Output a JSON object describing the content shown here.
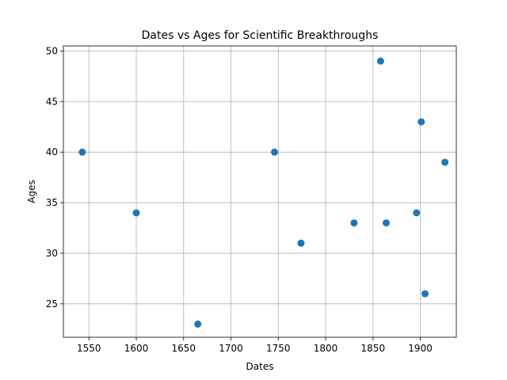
{
  "chart_data": {
    "type": "scatter",
    "title": "Dates vs Ages for Scientific Breakthroughs",
    "xlabel": "Dates",
    "ylabel": "Ages",
    "xlim": [
      1523,
      1938
    ],
    "ylim": [
      21.7,
      50.5
    ],
    "xticks": [
      1550,
      1600,
      1650,
      1700,
      1750,
      1800,
      1850,
      1900
    ],
    "yticks": [
      25,
      30,
      35,
      40,
      45,
      50
    ],
    "grid": true,
    "color": "#1f77b4",
    "points": [
      {
        "x": 1543,
        "y": 40
      },
      {
        "x": 1600,
        "y": 34
      },
      {
        "x": 1665,
        "y": 23
      },
      {
        "x": 1746,
        "y": 40
      },
      {
        "x": 1774,
        "y": 31
      },
      {
        "x": 1830,
        "y": 33
      },
      {
        "x": 1858,
        "y": 49
      },
      {
        "x": 1864,
        "y": 33
      },
      {
        "x": 1896,
        "y": 34
      },
      {
        "x": 1901,
        "y": 43
      },
      {
        "x": 1905,
        "y": 26
      },
      {
        "x": 1926,
        "y": 39
      }
    ]
  }
}
